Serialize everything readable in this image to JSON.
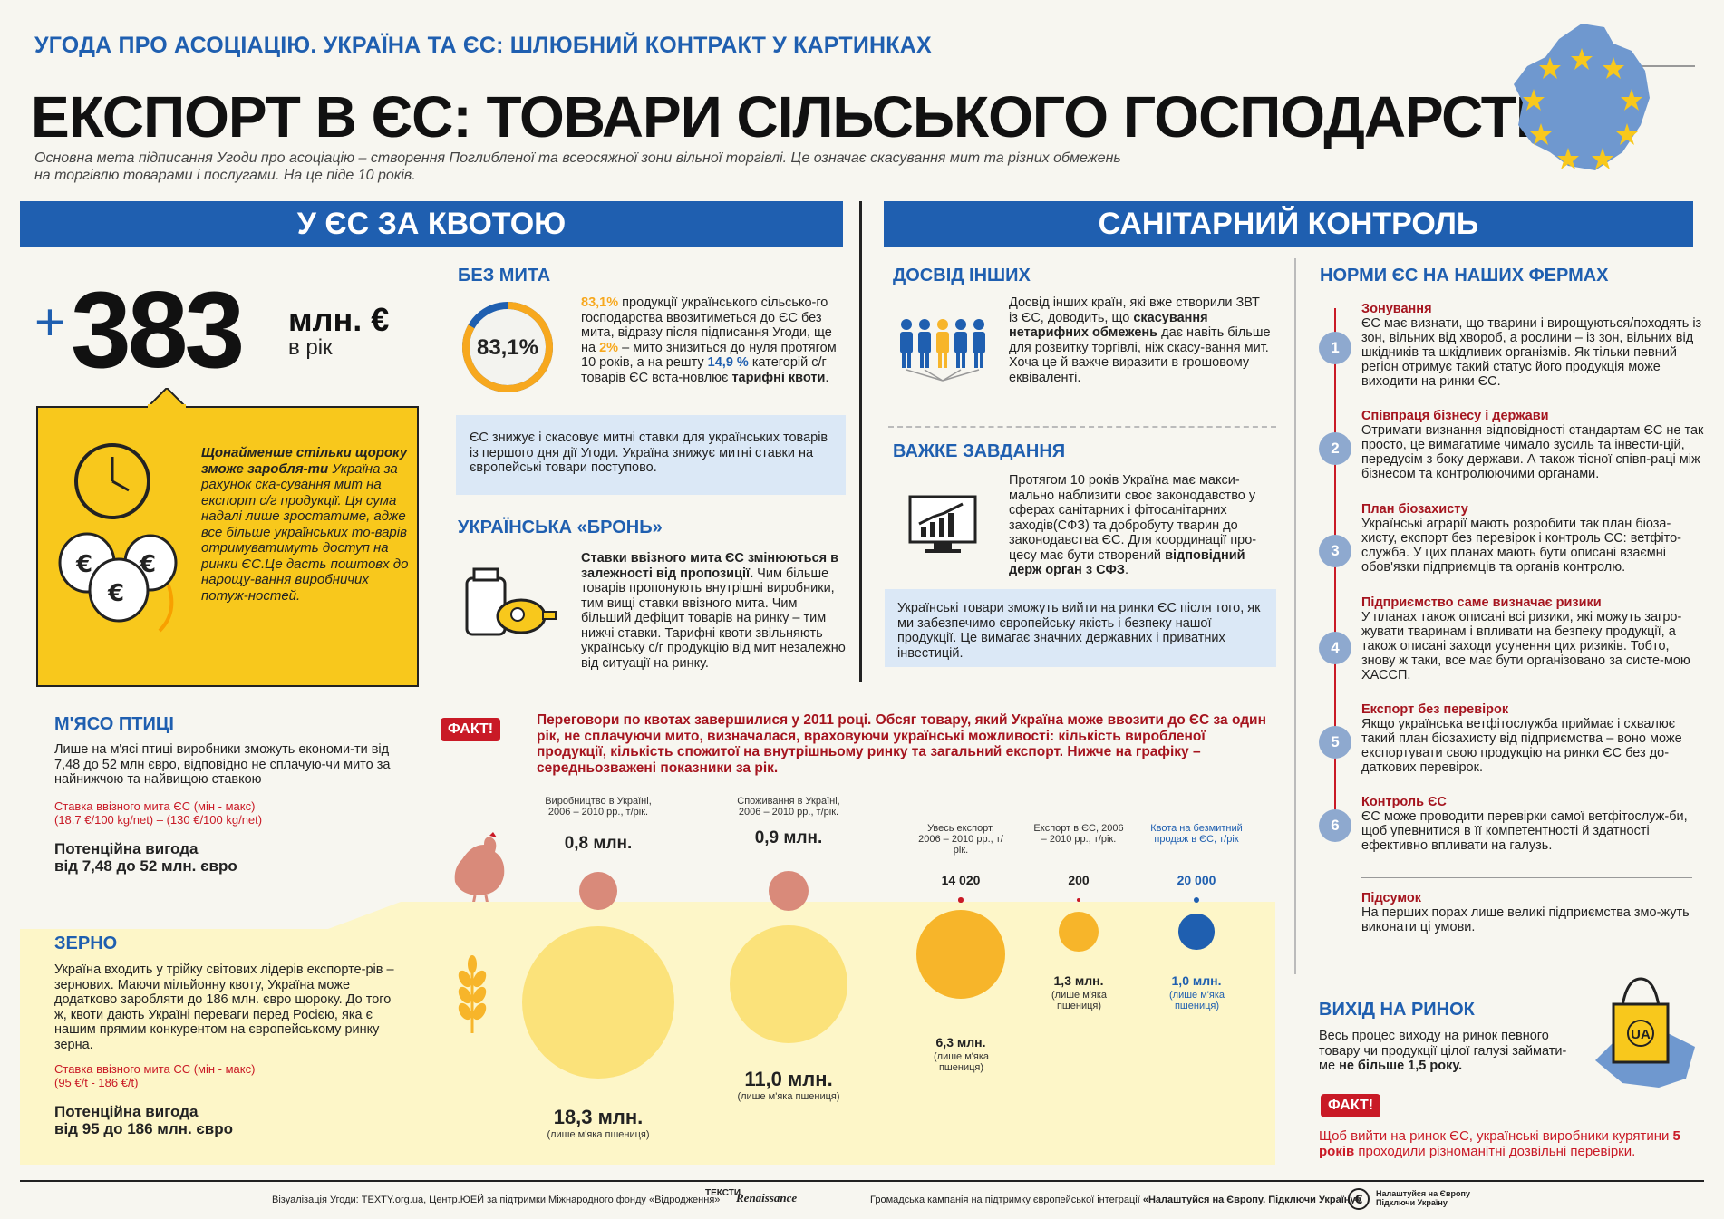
{
  "header": {
    "series_title": "УГОДА ПРО АСОЦІАЦІЮ. УКРАЇНА ТА ЄС: ШЛЮБНИЙ КОНТРАКТ У КАРТИНКАХ",
    "title": "ЕКСПОРТ В ЄС: ТОВАРИ СІЛЬСЬКОГО ГОСПОДАРСТВА",
    "lead": "Основна мета підписання Угоди про асоціацію – створення Поглибленої та всеосяжної зони вільної торгівлі. Це означає  скасування мит та різних обмежень на торгівлю товарами і послугами. На це піде 10 років."
  },
  "quota": {
    "band": "У ЄС ЗА КВОТОЮ",
    "plus": "+",
    "big_number": "383",
    "unit": "млн. €",
    "per_year": "в рік",
    "yellow_bold": "Щонайменше стільки щороку зможе заробля-ти",
    "yellow_text": " Україна за рахунок ска-сування мит на експорт с/г продукції. Ця сума надалі лише зростатиме, адже все більше українських то-варів отримуватимуть доступ на ринки ЄС.Це дасть поштовх до нарощу-вання виробничих потуж-ностей.",
    "duty_free": {
      "heading": "БЕЗ МИТА",
      "pct_label": "83,1%",
      "pct_value": 83.1,
      "t1_pct": "83,1%",
      "t1": " продукції українського сільсько-го господарства ввозитиметься до ЄС без мита, відразу після підписання Угоди, ще на ",
      "t1_pct2": "2%",
      "t2": " – мито знизиться до нуля протягом 10 років, а на решту ",
      "t2_pct": "14,9 %",
      "t3": " категорій с/г товарів ЄС вста-новлює ",
      "t3_bold": "тарифні квоти",
      "t4": ".",
      "note": "ЄС знижує і скасовує митні ставки для українських товарів із першого дня дії Угоди. Україна знижує митні ставки на європейські товари поступово."
    },
    "armor": {
      "heading": "УКРАЇНСЬКА «БРОНЬ»",
      "bold": "Ставки ввізного мита ЄС змінюються в залежності від пропозиції.",
      "text": " Чим більше товарів пропонують внутрішні виробники, тим вищі ставки ввізного мита. Чим більший дефіцит товарів на ринку – тим нижчі ставки. Тарифні квоти звільняють українську с/г продукцію від мит незалежно від ситуації на ринку."
    }
  },
  "sanitary": {
    "band": "САНІТАРНИЙ КОНТРОЛЬ",
    "others": {
      "heading": "ДОСВІД ІНШИХ",
      "t1": "Досвід інших країн, які вже створили ЗВТ із ЄС, доводить, що ",
      "bold": "скасування нетарифних обмежень",
      "t2": " дає навіть більше для розвитку торгівлі, ніж скасу-вання мит. Хоча це й важче виразити в грошовому еквіваленті."
    },
    "hard": {
      "heading": "ВАЖКЕ ЗАВДАННЯ",
      "t1": "Протягом 10 років Україна має макси-мально наблизити своє законодавство у сферах санітарних і фітосанітарних заходів(СФЗ) та добробуту тварин до законодавства ЄС. Для координації про-цесу має бути створений ",
      "bold": "відповідний держ орган з СФЗ",
      "t2": ".",
      "note": "Українські товари зможуть вийти на ринки ЄС після того, як ми забезпечимо європейську якість і безпеку нашої продукції. Це вимагає значних  державних і приватних інвестицій."
    },
    "norms": {
      "heading": "НОРМИ ЄС НА НАШИХ ФЕРМАХ",
      "steps": [
        {
          "n": "1",
          "title": "Зонування",
          "text": "ЄС має визнати, що тварини і вирощуються/походять із зон, вільних від хвороб, а рослини – із зон, вільних від шкідників та шкідливих організмів. Як тільки певний регіон  отримує  такий статус його продукція може виходити  на ринки ЄС."
        },
        {
          "n": "2",
          "title": "Співпраця бізнесу і держави",
          "text": "Отримати визнання відповідності стандартам ЄС не так просто, це вимагатиме чимало зусиль та інвести-цій, передусім з боку держави. А також тісної співп-раці між бізнесом та контролюючими органами."
        },
        {
          "n": "3",
          "title": "План біозахисту",
          "text": "Українські аграрії  мають  розробити так план біоза-хисту, експорт без перевірок і контроль ЄС: ветфіто-служба. У цих планах мають бути описані взаємні обов'язки підприємців та органів контролю."
        },
        {
          "n": "4",
          "title": "Підприємство саме визначає ризики",
          "text": "У планах також описані всі ризики, які можуть загро-жувати тваринам і впливати на безпеку продукції, а також описані заходи усунення  цих ризиків. Тобто, знову ж таки, все має бути організовано за систе-мою ХАССП."
        },
        {
          "n": "5",
          "title": "Експорт без перевірок",
          "text": "Якщо українська ветфітослужба приймає і схвалює такий план біозахисту від підприємства – воно може експортувати свою продукцію на ринки ЄС без до-даткових перевірок."
        },
        {
          "n": "6",
          "title": "Контроль ЄС",
          "text": "ЄС може проводити перевірки самої ветфітослуж-би, щоб упевнитися  в її  компетентності й здатності ефективно впливати на галузь."
        }
      ],
      "summary_title": "Підсумок",
      "summary_text": "На перших порах лише великі  підприємства  змо-жуть виконати ці умови."
    },
    "market": {
      "heading": "ВИХІД НА РИНОК",
      "t1": "Весь процес виходу на ринок певного товару чи продукції цілої галузі займати-ме ",
      "bold": "не більше 1,5 року.",
      "bag_label": "UA",
      "fact_label": "ФАКТ!",
      "fact_t1": "Щоб вийти на ринок ЄС, українські виробники курятини ",
      "fact_bold": "5 років",
      "fact_t2": " проходили різноманітні дозвільні перевірки."
    }
  },
  "fact": {
    "label": "ФАКТ!",
    "text": "Переговори по квотах завершилися у 2011 році. Обсяг товару, який Україна може ввозити до ЄС за один рік, не сплачуючи мито, визначалася, враховуючи українські можливості: кількість виробленої продукції, кількість спожитої на внутрішньому ринку та загальний експорт. Нижче на графіку – середньозважені показники за рік."
  },
  "poultry": {
    "heading": "М'ЯСО ПТИЦІ",
    "text": "Лише на м'ясі птиці виробники зможуть економи-ти від 7,48 до 52 млн євро, відповідно не сплачую-чи мито за найнижчою та найвищою ставкою",
    "rate_label": "Ставка ввізного мита ЄС (мін - макс)",
    "rate_value": "(18.7 €/100 kg/net) – (130 €/100 kg/net)",
    "benefit_label": "Потенційна вигода",
    "benefit_value": "від 7,48 до 52 млн. євро"
  },
  "grain": {
    "heading": "ЗЕРНО",
    "text": "Україна входить у трійку світових лідерів експорте-рів – зернових. Маючи мільйонну квоту, Україна може додатково заробляти до 186 млн. євро щороку. До того ж, квоти дають Україні переваги перед Росією, яка є нашим прямим конкурентом на європейському ринку зерна.",
    "rate_label": "Ставка ввізного мита ЄС (мін - макс)",
    "rate_value": "(95 €/t - 186 €/t)",
    "benefit_label": "Потенційна вигода",
    "benefit_value": "від 95 до 186 млн. євро"
  },
  "chart_data": {
    "type": "bubble",
    "categories": [
      "Виробництво в  Україні, 2006 – 2010 рр., т/рік.",
      "Споживання в  Україні, 2006 – 2010 рр., т/рік.",
      "Увесь експорт, 2006 – 2010 рр., т/рік.",
      "Експорт в ЄС, 2006 – 2010 рр., т/рік.",
      "Квота на безмитний продаж в ЄС, т/рік"
    ],
    "series": [
      {
        "name": "М'ЯСО ПТИЦІ",
        "labels": [
          "0,8 млн.",
          "0,9 млн.",
          "14 020",
          "200",
          "20 000"
        ],
        "values": [
          800000,
          900000,
          14020,
          200,
          20000
        ]
      },
      {
        "name": "ЗЕРНО",
        "labels": [
          "18,3 млн.",
          "11,0 млн.",
          "6,3 млн.",
          "1,3 млн.",
          "1,0 млн."
        ],
        "values": [
          18300000,
          11000000,
          6300000,
          1300000,
          1000000
        ],
        "note": "(лише м'яка пшениця)"
      }
    ],
    "colors": {
      "poultry": "#d98a7a",
      "grain_light": "#fbe27a",
      "grain_orange": "#f7b52a",
      "quota": "#1f5fb0"
    }
  },
  "footer": {
    "left": "Візуалізація Угоди: TEXTY.org.ua, Центр.ЮЕЙ за підтримки Міжнародного фонду «Відродження»",
    "logo1": "ТЕКСТИ",
    "logo2": "Renaissance",
    "center_pre": "Громадська кампанія на підтримку європейської інтеграції ",
    "center_bold": "«Налаштуйся на Європу. Підключи Україну»",
    "right": "Налаштуйся на Європу Підключи Україну"
  }
}
